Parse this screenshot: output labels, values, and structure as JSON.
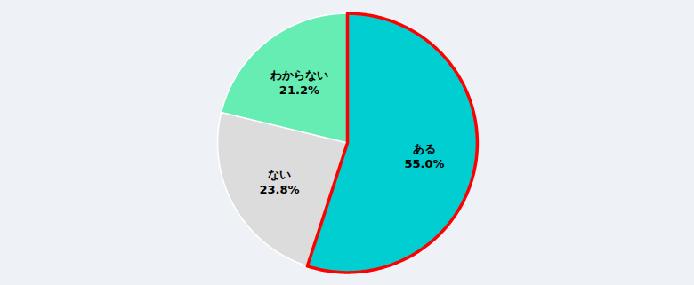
{
  "chart_data": {
    "type": "pie",
    "categories": [
      "ある",
      "ない",
      "わからない"
    ],
    "values": [
      55.0,
      23.8,
      21.2
    ],
    "value_labels": [
      "55.0%",
      "23.8%",
      "21.2%"
    ],
    "colors": [
      "#00CED1",
      "#DCDCDC",
      "#66EDB3"
    ],
    "data_labels": true
  }
}
